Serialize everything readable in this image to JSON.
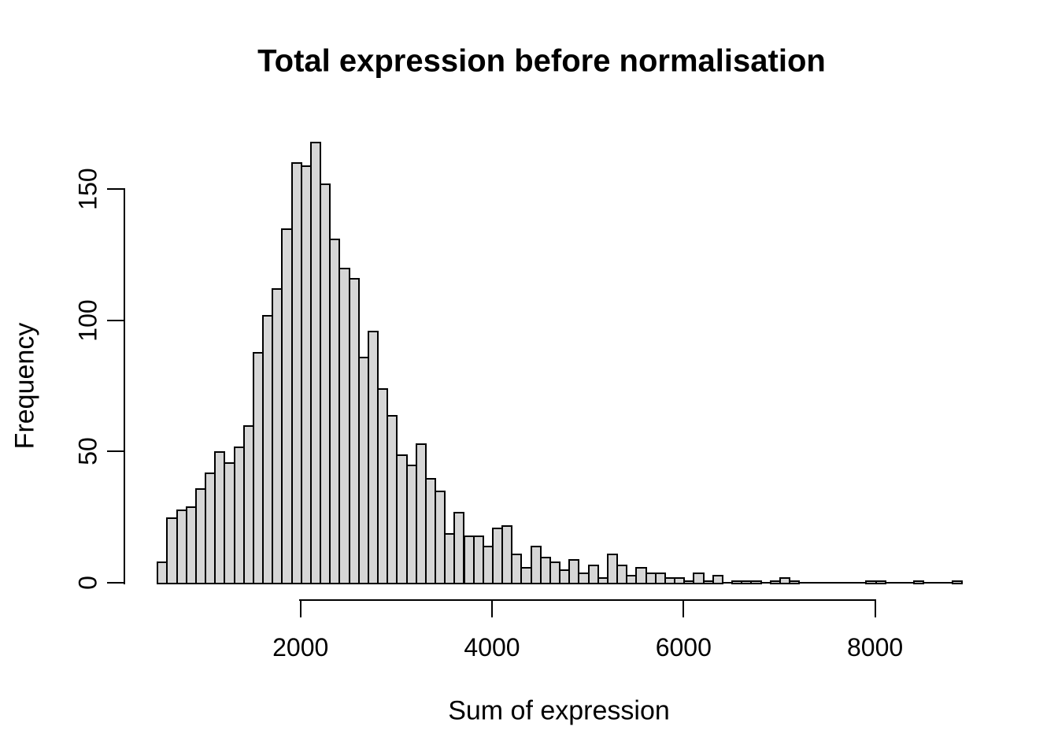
{
  "chart_data": {
    "type": "bar",
    "subtype": "histogram",
    "title": "Total expression before normalisation",
    "xlabel": "Sum of expression",
    "ylabel": "Frequency",
    "bin_start": 500,
    "bin_width": 100,
    "counts": [
      8,
      25,
      28,
      29,
      36,
      42,
      50,
      46,
      52,
      60,
      88,
      102,
      112,
      135,
      160,
      159,
      168,
      152,
      131,
      120,
      116,
      86,
      96,
      74,
      64,
      49,
      45,
      53,
      40,
      35,
      19,
      27,
      18,
      18,
      14,
      21,
      22,
      11,
      6,
      14,
      10,
      8,
      5,
      9,
      4,
      7,
      2,
      11,
      7,
      3,
      6,
      4,
      4,
      2,
      2,
      1,
      4,
      1,
      3,
      0,
      1,
      1,
      1,
      0,
      1,
      2,
      1,
      0,
      0,
      0,
      0,
      0,
      0,
      0,
      1,
      1,
      0,
      0,
      0,
      1,
      0,
      0,
      0,
      1
    ],
    "xlim": [
      500,
      8900
    ],
    "ylim": [
      0,
      168
    ],
    "x_ticks": [
      2000,
      4000,
      6000,
      8000
    ],
    "x_tick_labels": [
      "2000",
      "4000",
      "6000",
      "8000"
    ],
    "y_ticks": [
      0,
      50,
      100,
      150
    ],
    "y_tick_labels": [
      "0",
      "50",
      "100",
      "150"
    ],
    "grid": false,
    "legend": "none",
    "bar_fill": "#d6d6d6",
    "bar_stroke": "#000000",
    "background": "#ffffff"
  }
}
